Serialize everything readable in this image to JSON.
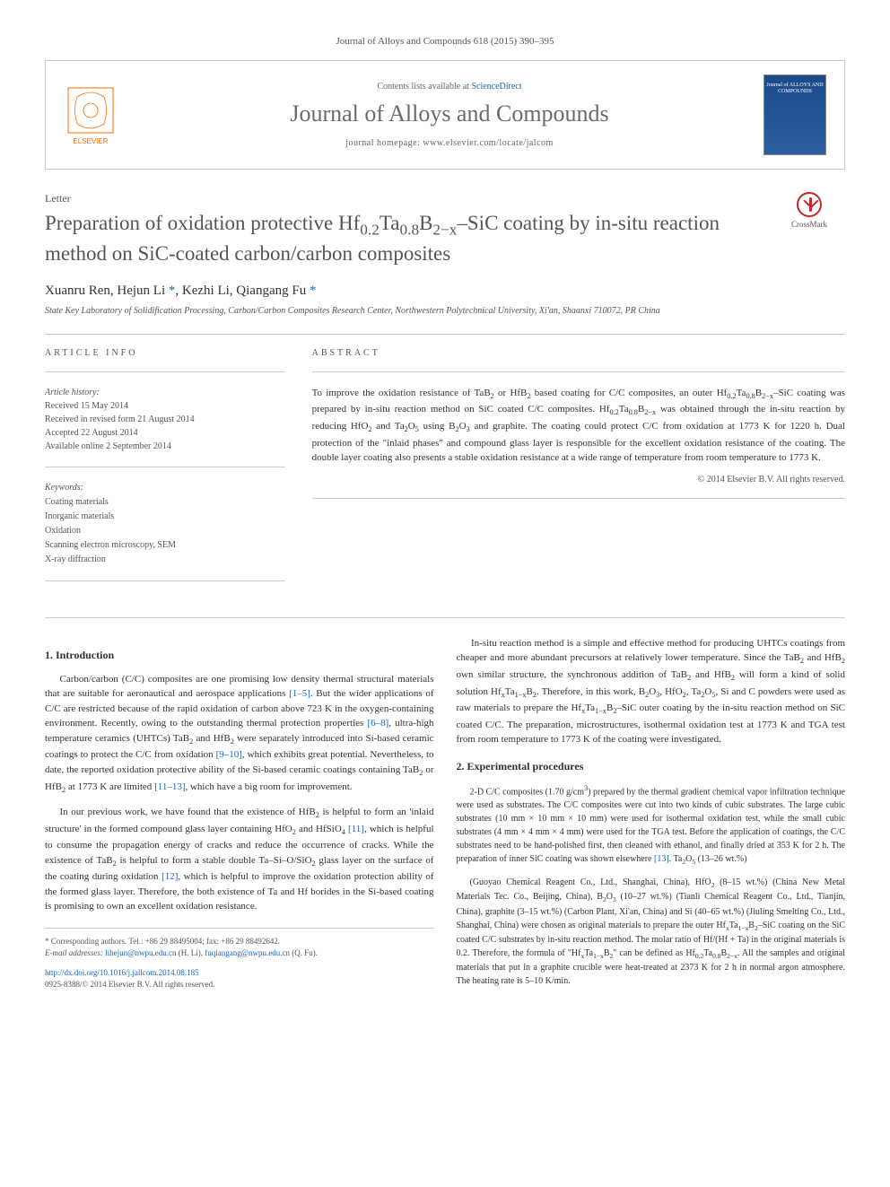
{
  "header": {
    "citation": "Journal of Alloys and Compounds 618 (2015) 390–395",
    "contents_prefix": "Contents lists available at ",
    "contents_link": "ScienceDirect",
    "journal_title": "Journal of Alloys and Compounds",
    "homepage_label": "journal homepage: www.elsevier.com/locate/jalcom",
    "cover_text": "Journal of\nALLOYS\nAND COMPOUNDS",
    "elsevier_label": "ELSEVIER"
  },
  "article": {
    "type_label": "Letter",
    "title_html": "Preparation of oxidation protective Hf<sub>0.2</sub>Ta<sub>0.8</sub>B<sub>2−x</sub>–SiC coating by in-situ reaction method on SiC-coated carbon/carbon composites",
    "crossmark_label": "CrossMark",
    "authors_html": "Xuanru Ren, Hejun Li <a href='#'>*</a>, Kezhi Li, Qiangang Fu <a href='#'>*</a>",
    "affiliation": "State Key Laboratory of Solidification Processing, Carbon/Carbon Composites Research Center, Northwestern Polytechnical University, Xi'an, Shaanxi 710072, PR China"
  },
  "info": {
    "heading": "ARTICLE INFO",
    "history_label": "Article history:",
    "received": "Received 15 May 2014",
    "revised": "Received in revised form 21 August 2014",
    "accepted": "Accepted 22 August 2014",
    "online": "Available online 2 September 2014",
    "keywords_label": "Keywords:",
    "keywords": [
      "Coating materials",
      "Inorganic materials",
      "Oxidation",
      "Scanning electron microscopy, SEM",
      "X-ray diffraction"
    ]
  },
  "abstract": {
    "heading": "ABSTRACT",
    "text_html": "To improve the oxidation resistance of TaB<sub>2</sub> or HfB<sub>2</sub> based coating for C/C composites, an outer Hf<sub>0.2</sub>Ta<sub>0.8</sub>B<sub>2−x</sub>–SiC coating was prepared by in-situ reaction method on SiC coated C/C composites. Hf<sub>0.2</sub>Ta<sub>0.8</sub>B<sub>2−x</sub> was obtained through the in-situ reaction by reducing HfO<sub>2</sub> and Ta<sub>2</sub>O<sub>5</sub> using B<sub>2</sub>O<sub>3</sub> and graphite. The coating could protect C/C from oxidation at 1773 K for 1220 h. Dual protection of the \"inlaid phases\" and compound glass layer is responsible for the excellent oxidation resistance of the coating. The double layer coating also presents a stable oxidation resistance at a wide range of temperature from room temperature to 1773 K.",
    "copyright": "© 2014 Elsevier B.V. All rights reserved."
  },
  "sections": {
    "intro_heading": "1. Introduction",
    "intro_p1_html": "Carbon/carbon (C/C) composites are one promising low density thermal structural materials that are suitable for aeronautical and aerospace applications <a class='ref-link' href='#'>[1–5]</a>. But the wider applications of C/C are restricted because of the rapid oxidation of carbon above 723 K in the oxygen-containing environment. Recently, owing to the outstanding thermal protection properties <a class='ref-link' href='#'>[6–8]</a>, ultra-high temperature ceramics (UHTCs) TaB<sub>2</sub> and HfB<sub>2</sub> were separately introduced into Si-based ceramic coatings to protect the C/C from oxidation <a class='ref-link' href='#'>[9–10]</a>, which exhibits great potential. Nevertheless, to date, the reported oxidation protective ability of the Si-based ceramic coatings containing TaB<sub>2</sub> or HfB<sub>2</sub> at 1773 K are limited <a class='ref-link' href='#'>[11–13]</a>, which have a big room for improvement.",
    "intro_p2_html": "In our previous work, we have found that the existence of HfB<sub>2</sub> is helpful to form an 'inlaid structure' in the formed compound glass layer containing HfO<sub>2</sub> and HfSiO<sub>4</sub> <a class='ref-link' href='#'>[11]</a>, which is helpful to consume the propagation energy of cracks and reduce the occurrence of cracks. While the existence of TaB<sub>2</sub> is helpful to form a stable double Ta–Si–O/SiO<sub>2</sub> glass layer on the surface of the coating during oxidation <a class='ref-link' href='#'>[12]</a>, which is helpful to improve the oxidation protection ability of the formed glass layer. Therefore, the both existence of Ta and Hf borides in the Si-based coating is promising to own an excellent oxidation resistance.",
    "intro_p3_html": "In-situ reaction method is a simple and effective method for producing UHTCs coatings from cheaper and more abundant precursors at relatively lower temperature. Since the TaB<sub>2</sub> and HfB<sub>2</sub> own similar structure, the synchronous addition of TaB<sub>2</sub> and HfB<sub>2</sub> will form a kind of solid solution Hf<sub>x</sub>Ta<sub>1−x</sub>B<sub>2</sub>. Therefore, in this work, B<sub>2</sub>O<sub>3</sub>, HfO<sub>2</sub>, Ta<sub>2</sub>O<sub>5</sub>, Si and C powders were used as raw materials to prepare the Hf<sub>x</sub>Ta<sub>1−x</sub>B<sub>2</sub>–SiC outer coating by the in-situ reaction method on SiC coated C/C. The preparation, microstructures, isothermal oxidation test at 1773 K and TGA test from room temperature to 1773 K of the coating were investigated.",
    "exp_heading": "2. Experimental procedures",
    "exp_p1_html": "2-D C/C composites (1.70 g/cm<sup>3</sup>) prepared by the thermal gradient chemical vapor infiltration technique were used as substrates. The C/C composites were cut into two kinds of cubic substrates. The large cubic substrates (10 mm × 10 mm × 10 mm) were used for isothermal oxidation test, while the small cubic substrates (4 mm × 4 mm × 4 mm) were used for the TGA test. Before the application of coatings, the C/C substrates need to be hand-polished first, then cleaned with ethanol, and finally dried at 353 K for 2 h. The preparation of inner SiC coating was shown elsewhere <a class='ref-link' href='#'>[13]</a>. Ta<sub>2</sub>O<sub>5</sub> (13–26 wt.%)",
    "exp_p2_html": "(Guoyao Chemical Reagent Co., Ltd., Shanghai, China), HfO<sub>2</sub> (8–15 wt.%) (China New Metal Materials Tec. Co., Beijing, China), B<sub>2</sub>O<sub>3</sub> (10–27 wt.%) (Tianli Chemical Reagent Co., Ltd., Tianjin, China), graphite (3–15 wt.%) (Carbon Plant, Xi'an, China) and Si (40–65 wt.%) (Jiuling Smelting Co., Ltd., Shanghai, China) were chosen as original materials to prepare the outer Hf<sub>x</sub>Ta<sub>1−x</sub>B<sub>2</sub>–SiC coating on the SiC coated C/C substrates by in-situ reaction method. The molar ratio of Hf/(Hf + Ta) in the original materials is 0.2. Therefore, the formula of \"Hf<sub>x</sub>Ta<sub>1−x</sub>B<sub>2</sub>\" can be defined as Hf<sub>0.2</sub>Ta<sub>0.8</sub>B<sub>2−x</sub>. All the samples and original materials that put in a graphite crucible were heat-treated at 2373 K for 2 h in normal argon atmosphere. The heating rate is 5–10 K/min."
  },
  "footnotes": {
    "corresponding": "* Corresponding authors. Tel.: +86 29 88495004; fax: +86 29 88492642.",
    "emails_html": "<em>E-mail addresses:</em> <a href='#'>lihejun@nwpu.edu.cn</a> (H. Li), <a href='#'>fuqiangang@nwpu.edu.cn</a> (Q. Fu).",
    "doi_html": "<a href='#'>http://dx.doi.org/10.1016/j.jallcom.2014.08.185</a>",
    "issn": "0925-8388/© 2014 Elsevier B.V. All rights reserved."
  },
  "colors": {
    "link": "#1565c0",
    "text": "#333333",
    "muted": "#555555",
    "border": "#cccccc",
    "elsevier_orange": "#ff6b00",
    "crossmark_red": "#c62828",
    "cover_blue": "#1a4a8a"
  }
}
